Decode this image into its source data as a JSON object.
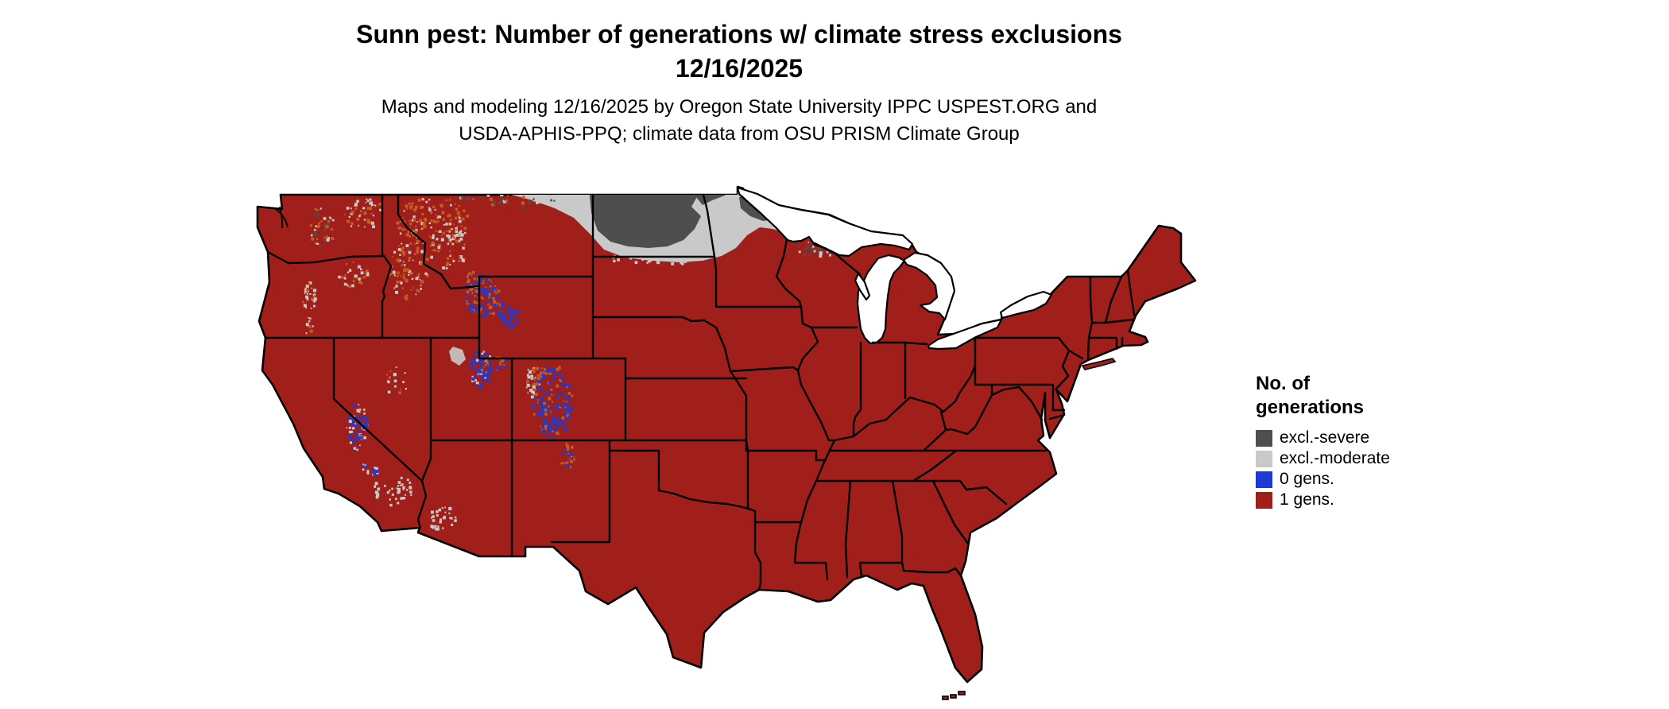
{
  "page": {
    "background": "#ffffff"
  },
  "title": {
    "line1": "Sunn pest: Number of generations w/ climate stress exclusions",
    "line2": "12/16/2025"
  },
  "subtitle": {
    "line1": "Maps and modeling 12/16/2025 by Oregon State University IPPC USPEST.ORG and",
    "line2": "USDA-APHIS-PPQ; climate data from OSU PRISM Climate Group"
  },
  "legend": {
    "heading_line1": "No. of",
    "heading_line2": "generations",
    "items": [
      {
        "label": "excl.-severe",
        "color": "#4e4e4e"
      },
      {
        "label": "excl.-moderate",
        "color": "#c9c9c9"
      },
      {
        "label": "0 gens.",
        "color": "#1d3ad2"
      },
      {
        "label": "1 gens.",
        "color": "#a01f1a"
      }
    ]
  },
  "map": {
    "region": "Continental United States",
    "base_color": "#a01f1a",
    "excl_severe_color": "#4e4e4e",
    "excl_moderate_color": "#c9c9c9",
    "zero_gens_color": "#1d3ad2",
    "speckle_accent_color": "#c85a1f",
    "water_color": "#ffffff",
    "border_color": "#000000"
  }
}
